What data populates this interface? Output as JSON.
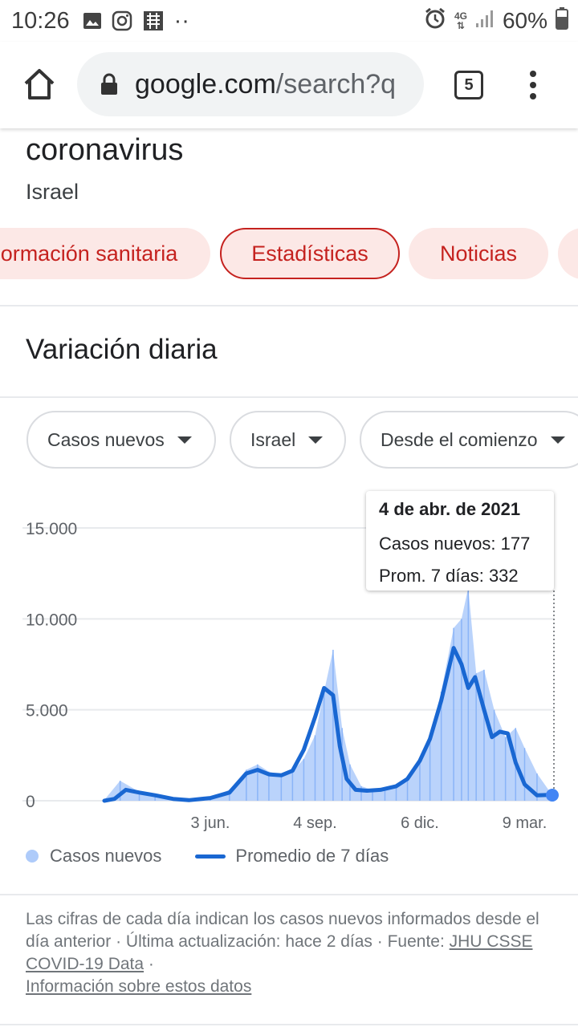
{
  "status_bar": {
    "time": "10:26",
    "network": "4G",
    "battery": "60%",
    "more_indicator": "··"
  },
  "browser": {
    "url_host": "google.com",
    "url_path": "/search?q",
    "tab_count": "5"
  },
  "search": {
    "query": "coronavirus",
    "location": "Israel",
    "chips": [
      "ormación sanitaria",
      "Estadísticas",
      "Noticias"
    ],
    "active_chip": "Estadísticas"
  },
  "section": {
    "title": "Variación diaria"
  },
  "filters": {
    "metric": "Casos nuevos",
    "region": "Israel",
    "range": "Desde el comienzo"
  },
  "tooltip": {
    "date": "4 de abr. de 2021",
    "new_cases": "Casos nuevos: 177",
    "avg7": "Prom. 7 días: 332"
  },
  "chart_data": {
    "type": "area",
    "xlabel": "",
    "ylabel": "",
    "ylim": [
      0,
      15000
    ],
    "yticks": [
      "0",
      "5.000",
      "10.000",
      "15.000"
    ],
    "xticks": [
      "3 jun.",
      "4 sep.",
      "6 dic.",
      "9 mar."
    ],
    "grid": true,
    "legend_position": "bottom-left",
    "series": [
      {
        "name": "Casos nuevos",
        "kind": "bars",
        "color": "#aecbfa",
        "dates": [
          "2020-03-01",
          "2020-03-15",
          "2020-04-01",
          "2020-04-15",
          "2020-05-01",
          "2020-05-15",
          "2020-06-03",
          "2020-06-20",
          "2020-07-05",
          "2020-07-15",
          "2020-07-25",
          "2020-08-05",
          "2020-08-15",
          "2020-08-25",
          "2020-09-04",
          "2020-09-12",
          "2020-09-20",
          "2020-09-28",
          "2020-10-05",
          "2020-10-15",
          "2020-10-25",
          "2020-11-05",
          "2020-11-15",
          "2020-11-25",
          "2020-12-06",
          "2020-12-15",
          "2020-12-25",
          "2021-01-05",
          "2021-01-12",
          "2021-01-18",
          "2021-01-25",
          "2021-02-01",
          "2021-02-10",
          "2021-02-20",
          "2021-03-01",
          "2021-03-09",
          "2021-03-20",
          "2021-04-04"
        ],
        "values": [
          50,
          1100,
          500,
          350,
          100,
          30,
          200,
          600,
          1700,
          2000,
          1600,
          1400,
          1600,
          2300,
          3600,
          6000,
          8300,
          4000,
          2000,
          800,
          600,
          600,
          700,
          1100,
          2300,
          3500,
          6000,
          9500,
          10000,
          11700,
          7000,
          7200,
          5000,
          3500,
          4000,
          2900,
          1500,
          177
        ]
      },
      {
        "name": "Promedio de 7 días",
        "kind": "line",
        "color": "#1967d2",
        "dates": [
          "2020-03-01",
          "2020-03-10",
          "2020-03-20",
          "2020-04-01",
          "2020-04-15",
          "2020-05-01",
          "2020-05-15",
          "2020-06-03",
          "2020-06-20",
          "2020-07-05",
          "2020-07-15",
          "2020-07-25",
          "2020-08-05",
          "2020-08-15",
          "2020-08-25",
          "2020-09-04",
          "2020-09-12",
          "2020-09-20",
          "2020-09-26",
          "2020-10-02",
          "2020-10-10",
          "2020-10-20",
          "2020-11-01",
          "2020-11-15",
          "2020-11-25",
          "2020-12-06",
          "2020-12-15",
          "2020-12-25",
          "2021-01-05",
          "2021-01-12",
          "2021-01-18",
          "2021-01-24",
          "2021-02-01",
          "2021-02-08",
          "2021-02-15",
          "2021-02-22",
          "2021-03-01",
          "2021-03-09",
          "2021-03-20",
          "2021-04-04"
        ],
        "values": [
          0,
          100,
          600,
          450,
          300,
          100,
          30,
          150,
          450,
          1500,
          1700,
          1450,
          1400,
          1650,
          2800,
          4600,
          6200,
          5800,
          3000,
          1200,
          600,
          550,
          600,
          800,
          1200,
          2200,
          3400,
          5500,
          8400,
          7500,
          6200,
          6800,
          5000,
          3500,
          3800,
          3700,
          2100,
          900,
          300,
          332
        ]
      }
    ]
  },
  "legend": {
    "cases_label": "Casos nuevos",
    "avg_label": "Promedio de 7 días"
  },
  "footnote": {
    "text1": "Las cifras de cada día indican los casos nuevos informados desde el día anterior",
    "sep": " · ",
    "updated": "Última actualización: hace 2 días",
    "source_label": "Fuente: ",
    "source_link": "JHU CSSE COVID-19 Data",
    "info_link": "Información sobre estos datos"
  }
}
